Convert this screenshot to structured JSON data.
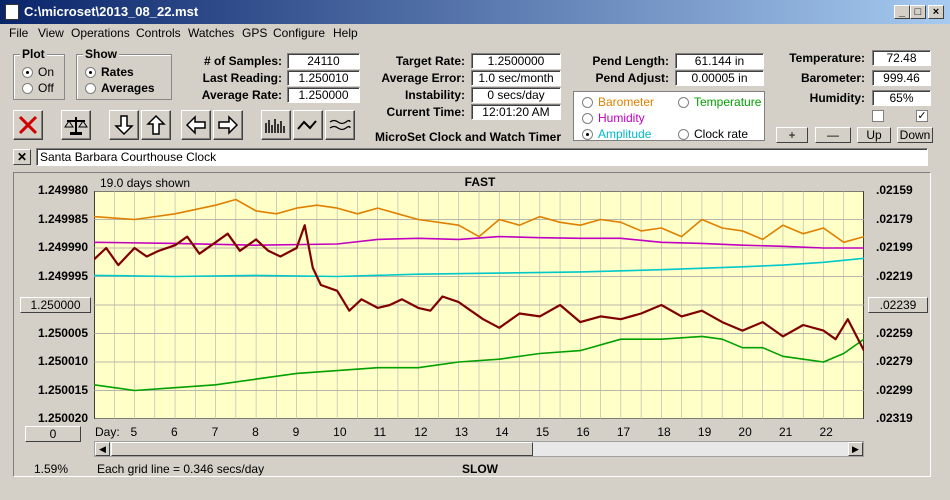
{
  "window": {
    "title": "C:\\microset\\2013_08_22.mst"
  },
  "menu": [
    "File",
    "View",
    "Operations",
    "Controls",
    "Watches",
    "GPS",
    "Configure",
    "Help"
  ],
  "plot_group": {
    "title": "Plot",
    "options": [
      "On",
      "Off"
    ],
    "selected": "On"
  },
  "show_group": {
    "title": "Show",
    "options": [
      "Rates",
      "Averages"
    ],
    "selected": "Rates"
  },
  "stats": {
    "samples_label": "# of Samples:",
    "samples": "24110",
    "last_label": "Last Reading:",
    "last": "1.250010",
    "avg_label": "Average Rate:",
    "avg": "1.250000"
  },
  "rates": {
    "target_label": "Target Rate:",
    "target": "1.2500000",
    "error_label": "Average Error:",
    "error": "1.0 sec/month",
    "instab_label": "Instability:",
    "instab": "0 secs/day",
    "time_label": "Current Time:",
    "time": "12:01:20 AM"
  },
  "app_caption": "MicroSet Clock and Watch Timer",
  "pend": {
    "length_label": "Pend Length:",
    "length": "61.144 in",
    "adjust_label": "Pend Adjust:",
    "adjust": "0.00005 in"
  },
  "series_options": [
    {
      "label": "Barometer",
      "color": "#e08000",
      "selected": false
    },
    {
      "label": "Temperature",
      "color": "#00a000",
      "selected": false
    },
    {
      "label": "Humidity",
      "color": "#c000c0",
      "selected": false
    },
    {
      "label": "Amplitude",
      "color": "#00c8c8",
      "selected": true
    },
    {
      "label": "Clock rate",
      "color": "#000000",
      "selected": false
    }
  ],
  "env": {
    "temp_label": "Temperature:",
    "temp": "72.48",
    "baro_label": "Barometer:",
    "baro": "999.46",
    "hum_label": "Humidity:",
    "hum": "65%"
  },
  "scale_buttons": [
    "+",
    "—",
    "Up",
    "Down"
  ],
  "comment": "Santa Barbara Courthouse Clock",
  "chart_data": {
    "type": "line",
    "days_shown": "19.0 days shown",
    "top_label": "FAST",
    "bottom_label": "SLOW",
    "left_ticks": [
      "1.249980",
      "1.249985",
      "1.249990",
      "1.249995",
      "1.250000",
      "1.250005",
      "1.250010",
      "1.250015",
      "1.250020"
    ],
    "right_ticks": [
      ".02159",
      ".02179",
      ".02199",
      ".02219",
      ".02239",
      ".02259",
      ".02279",
      ".02299",
      ".02319"
    ],
    "left_center_button": "1.250000",
    "right_center_button": ".02239",
    "x_label": "Day:",
    "x_ticks": [
      "5",
      "6",
      "7",
      "8",
      "9",
      "10",
      "11",
      "12",
      "13",
      "14",
      "15",
      "16",
      "17",
      "18",
      "19",
      "20",
      "21",
      "22"
    ],
    "x_tick_values": [
      5,
      6,
      7,
      8,
      9,
      10,
      11,
      12,
      13,
      14,
      15,
      16,
      17,
      18,
      19,
      20,
      21,
      22
    ],
    "xlim": [
      4,
      23
    ],
    "offset_button": "0",
    "percent": "1.59%",
    "grid_note": "Each grid line = 0.346 secs/day",
    "series": [
      {
        "color": "#e08000",
        "x": [
          4,
          5,
          6,
          7,
          7.5,
          8,
          8.5,
          9,
          9.5,
          10,
          10.5,
          11,
          11.5,
          12,
          12.5,
          13,
          13.5,
          14,
          14.5,
          15,
          15.5,
          16,
          16.5,
          17,
          17.5,
          18,
          18.5,
          19,
          19.5,
          20,
          20.5,
          21,
          21.5,
          22,
          22.5,
          23
        ],
        "y": [
          1.2499845,
          1.249985,
          1.249984,
          1.2499825,
          1.2499815,
          1.2499835,
          1.249984,
          1.249983,
          1.2499825,
          1.249983,
          1.249984,
          1.249983,
          1.249984,
          1.249985,
          1.2499855,
          1.249986,
          1.249988,
          1.249985,
          1.249986,
          1.2499845,
          1.2499855,
          1.249986,
          1.249985,
          1.2499855,
          1.249987,
          1.2499865,
          1.249988,
          1.249985,
          1.2499865,
          1.249987,
          1.2499885,
          1.249986,
          1.2499875,
          1.2499865,
          1.249989,
          1.249988
        ]
      },
      {
        "color": "#c000c0",
        "x": [
          4,
          6,
          8,
          10,
          11,
          12,
          13,
          14,
          15,
          16,
          17,
          18,
          19,
          20,
          21,
          22,
          23
        ],
        "y": [
          1.249989,
          1.2499892,
          1.2499895,
          1.2499893,
          1.2499885,
          1.2499883,
          1.2499885,
          1.249988,
          1.2499882,
          1.2499883,
          1.2499883,
          1.249989,
          1.2499892,
          1.2499895,
          1.2499897,
          1.24999,
          1.24999
        ]
      },
      {
        "color": "#00c8c8",
        "x": [
          4,
          6,
          8,
          10,
          12,
          14,
          16,
          18,
          20,
          21,
          22,
          23
        ],
        "y": [
          1.2499948,
          1.249995,
          1.2499948,
          1.249995,
          1.2499946,
          1.2499944,
          1.2499942,
          1.2499938,
          1.2499933,
          1.249993,
          1.2499925,
          1.2499918
        ]
      },
      {
        "color": "#00a000",
        "x": [
          4,
          5,
          6,
          7,
          8,
          9,
          10,
          11,
          12,
          13,
          14,
          15,
          16,
          17,
          18,
          19,
          19.5,
          20,
          20.5,
          21,
          21.5,
          22,
          22.5,
          23
        ],
        "y": [
          1.250014,
          1.250015,
          1.2500145,
          1.250014,
          1.250013,
          1.250012,
          1.2500115,
          1.250011,
          1.250011,
          1.25001,
          1.2500095,
          1.2500085,
          1.250008,
          1.250006,
          1.250006,
          1.2500055,
          1.250006,
          1.2500075,
          1.2500075,
          1.250009,
          1.2500095,
          1.25001,
          1.2500085,
          1.250006
        ]
      },
      {
        "color": "#800000",
        "x": [
          4,
          4.3,
          4.6,
          5,
          5.3,
          5.6,
          6,
          6.3,
          6.6,
          7,
          7.3,
          7.6,
          8,
          8.3,
          8.6,
          9,
          9.2,
          9.4,
          9.6,
          10,
          10.3,
          10.6,
          11,
          11.3,
          11.6,
          12,
          12.3,
          12.6,
          13,
          13.3,
          13.6,
          14,
          14.5,
          15,
          15.5,
          16,
          16.5,
          17,
          17.5,
          18,
          18.5,
          19,
          19.5,
          20,
          20.5,
          21,
          21.5,
          22,
          22.3,
          22.6,
          23
        ],
        "y": [
          1.249992,
          1.24999,
          1.249993,
          1.24999,
          1.2499915,
          1.2499905,
          1.2499895,
          1.249988,
          1.249991,
          1.249989,
          1.2499875,
          1.2499905,
          1.2499885,
          1.2499905,
          1.2499915,
          1.24999,
          1.249986,
          1.2499935,
          1.2499965,
          1.2499975,
          1.250001,
          1.249999,
          1.2500005,
          1.25,
          1.249999,
          1.2500005,
          1.250001,
          1.2499985,
          1.2499995,
          1.250001,
          1.2500025,
          1.250004,
          1.2500015,
          1.250002,
          1.25,
          1.250003,
          1.250002,
          1.2500025,
          1.2500015,
          1.25,
          1.250002,
          1.250001,
          1.250003,
          1.2500045,
          1.250003,
          1.2500055,
          1.2500035,
          1.2500045,
          1.250006,
          1.2500025,
          1.250008
        ]
      }
    ]
  }
}
